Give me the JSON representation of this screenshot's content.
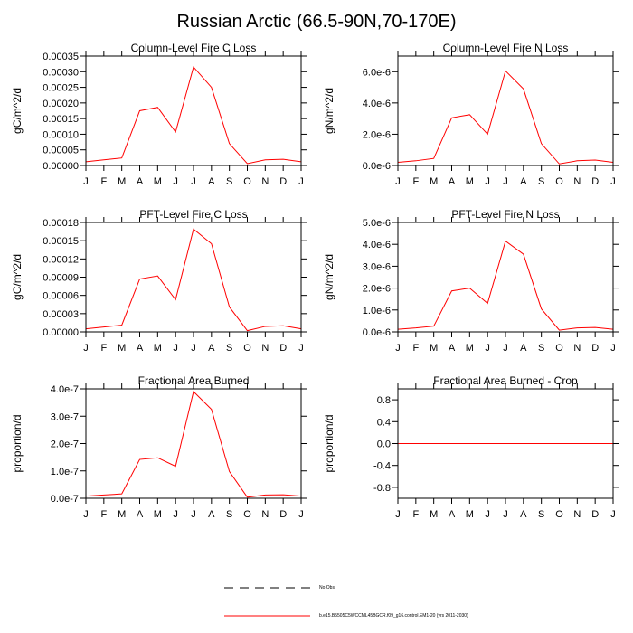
{
  "figure": {
    "title": "Russian Arctic (66.5-90N,70-170E)"
  },
  "legend": {
    "entries": [
      {
        "label": "No Obs",
        "style": "dashed",
        "color": "#000000"
      },
      {
        "label": "b.e15.B5505C5WCCML45BGCR.f09_g16.control.EM1-20 (yrs 2011-2030)",
        "style": "solid",
        "color": "#ff0000"
      }
    ]
  },
  "chart_data": [
    {
      "type": "line",
      "title": "Column-Level Fire C Loss",
      "xlabel": "",
      "ylabel": "gC/m^2/d",
      "categories": [
        "J",
        "F",
        "M",
        "A",
        "M",
        "J",
        "J",
        "A",
        "S",
        "O",
        "N",
        "D",
        "J"
      ],
      "ylim": [
        0,
        0.00035
      ],
      "yticks": [
        "0.00000",
        "0.00005",
        "0.00010",
        "0.00015",
        "0.00020",
        "0.00025",
        "0.00030",
        "0.00035"
      ],
      "ytick_values": [
        0,
        5e-05,
        0.0001,
        0.00015,
        0.0002,
        0.00025,
        0.0003,
        0.00035
      ],
      "series": [
        {
          "name": "b.e15.B5505C5WCCML45BGCR.f09_g16.control.EM1-20 (yrs 2011-2030)",
          "color": "#ff0000",
          "values": [
            1.2e-05,
            1.8e-05,
            2.4e-05,
            0.000175,
            0.000186,
            0.000107,
            0.000315,
            0.00025,
            7e-05,
            6e-06,
            1.8e-05,
            2e-05,
            1.2e-05
          ]
        }
      ]
    },
    {
      "type": "line",
      "title": "Column-Level Fire N Loss",
      "xlabel": "",
      "ylabel": "gN/m^2/d",
      "categories": [
        "J",
        "F",
        "M",
        "A",
        "M",
        "J",
        "J",
        "A",
        "S",
        "O",
        "N",
        "D",
        "J"
      ],
      "ylim": [
        0,
        7e-06
      ],
      "yticks": [
        "0.0e-6",
        "2.0e-6",
        "4.0e-6",
        "6.0e-6"
      ],
      "ytick_values": [
        0,
        2e-06,
        4e-06,
        6e-06
      ],
      "series": [
        {
          "name": "b.e15.B5505C5WCCML45BGCR.f09_g16.control.EM1-20 (yrs 2011-2030)",
          "color": "#ff0000",
          "values": [
            2e-07,
            3e-07,
            4.5e-07,
            3.05e-06,
            3.25e-06,
            2e-06,
            6.05e-06,
            4.9e-06,
            1.4e-06,
            1e-07,
            3e-07,
            3.5e-07,
            2e-07
          ]
        }
      ]
    },
    {
      "type": "line",
      "title": "PFT-Level Fire C Loss",
      "xlabel": "",
      "ylabel": "gC/m^2/d",
      "categories": [
        "J",
        "F",
        "M",
        "A",
        "M",
        "J",
        "J",
        "A",
        "S",
        "O",
        "N",
        "D",
        "J"
      ],
      "ylim": [
        0,
        0.00018
      ],
      "yticks": [
        "0.00000",
        "0.00003",
        "0.00006",
        "0.00009",
        "0.00012",
        "0.00015",
        "0.00018"
      ],
      "ytick_values": [
        0,
        3e-05,
        6e-05,
        9e-05,
        0.00012,
        0.00015,
        0.00018
      ],
      "series": [
        {
          "name": "b.e15.B5505C5WCCML45BGCR.f09_g16.control.EM1-20 (yrs 2011-2030)",
          "color": "#ff0000",
          "values": [
            5e-06,
            8e-06,
            1.1e-05,
            8.7e-05,
            9.2e-05,
            5.3e-05,
            0.000169,
            0.000145,
            4.1e-05,
            2e-06,
            9e-06,
            1e-05,
            5e-06
          ]
        }
      ]
    },
    {
      "type": "line",
      "title": "PFT-Level Fire N Loss",
      "xlabel": "",
      "ylabel": "gN/m^2/d",
      "categories": [
        "J",
        "F",
        "M",
        "A",
        "M",
        "J",
        "J",
        "A",
        "S",
        "O",
        "N",
        "D",
        "J"
      ],
      "ylim": [
        0,
        5e-06
      ],
      "yticks": [
        "0.0e-6",
        "1.0e-6",
        "2.0e-6",
        "3.0e-6",
        "4.0e-6",
        "5.0e-6"
      ],
      "ytick_values": [
        0,
        1e-06,
        2e-06,
        3e-06,
        4e-06,
        5e-06
      ],
      "series": [
        {
          "name": "b.e15.B5505C5WCCML45BGCR.f09_g16.control.EM1-20 (yrs 2011-2030)",
          "color": "#ff0000",
          "values": [
            1.2e-07,
            1.8e-07,
            2.6e-07,
            1.87e-06,
            2e-06,
            1.3e-06,
            4.15e-06,
            3.55e-06,
            1.05e-06,
            8e-08,
            1.8e-07,
            2e-07,
            1.2e-07
          ]
        }
      ]
    },
    {
      "type": "line",
      "title": "Fractional Area Burned",
      "xlabel": "",
      "ylabel": "proportion/d",
      "categories": [
        "J",
        "F",
        "M",
        "A",
        "M",
        "J",
        "J",
        "A",
        "S",
        "O",
        "N",
        "D",
        "J"
      ],
      "ylim": [
        0,
        4e-07
      ],
      "yticks": [
        "0.0e-7",
        "1.0e-7",
        "2.0e-7",
        "3.0e-7",
        "4.0e-7"
      ],
      "ytick_values": [
        0,
        1e-07,
        2e-07,
        3e-07,
        4e-07
      ],
      "series": [
        {
          "name": "b.e15.B5505C5WCCML45BGCR.f09_g16.control.EM1-20 (yrs 2011-2030)",
          "color": "#ff0000",
          "values": [
            8e-09,
            1.2e-08,
            1.6e-08,
            1.42e-07,
            1.48e-07,
            1.17e-07,
            3.9e-07,
            3.25e-07,
            9.8e-08,
            4e-09,
            1.2e-08,
            1.3e-08,
            8e-09
          ]
        }
      ]
    },
    {
      "type": "line",
      "title": "Fractional Area Burned - Crop",
      "xlabel": "",
      "ylabel": "proportion/d",
      "categories": [
        "J",
        "F",
        "M",
        "A",
        "M",
        "J",
        "J",
        "A",
        "S",
        "O",
        "N",
        "D",
        "J"
      ],
      "ylim": [
        -1.0,
        1.0
      ],
      "yticks": [
        "-0.8",
        "-0.4",
        "0.0",
        "0.4",
        "0.8"
      ],
      "ytick_values": [
        -0.8,
        -0.4,
        0.0,
        0.4,
        0.8
      ],
      "series": [
        {
          "name": "b.e15.B5505C5WCCML45BGCR.f09_g16.control.EM1-20 (yrs 2011-2030)",
          "color": "#ff0000",
          "values": [
            0,
            0,
            0,
            0,
            0,
            0,
            0,
            0,
            0,
            0,
            0,
            0,
            0
          ]
        }
      ]
    }
  ]
}
